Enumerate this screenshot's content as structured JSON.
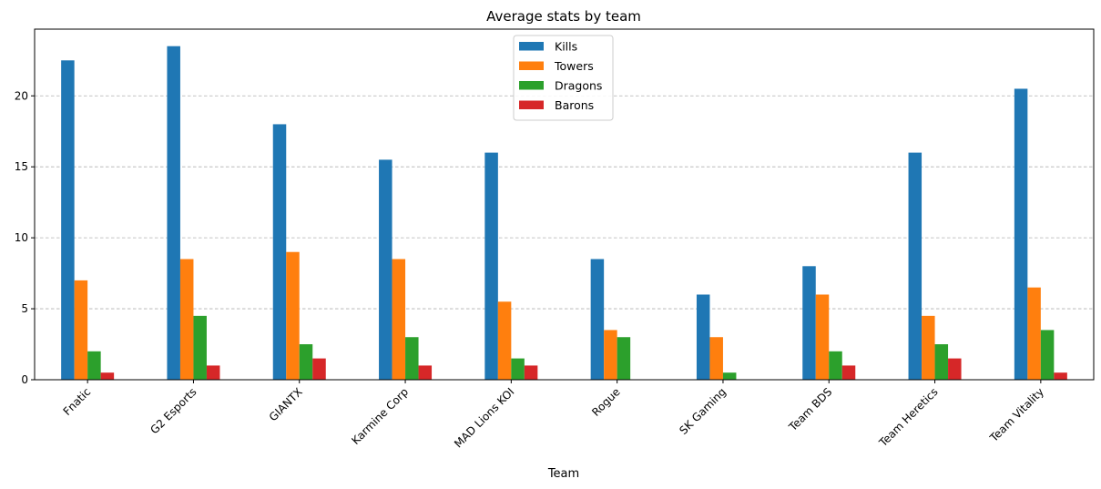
{
  "chart_data": {
    "type": "bar",
    "title": "Average stats by team",
    "xlabel": "Team",
    "ylabel": "",
    "ylim": [
      0,
      24.7
    ],
    "yticks": [
      0,
      5,
      10,
      15,
      20
    ],
    "grid": "y-dashed",
    "legend_position": "top-center",
    "categories": [
      "Fnatic",
      "G2 Esports",
      "GIANTX",
      "Karmine Corp",
      "MAD Lions KOI",
      "Rogue",
      "SK Gaming",
      "Team BDS",
      "Team Heretics",
      "Team Vitality"
    ],
    "series": [
      {
        "name": "Kills",
        "color": "#1f77b4",
        "values": [
          22.5,
          23.5,
          18.0,
          15.5,
          16.0,
          8.5,
          6.0,
          8.0,
          16.0,
          20.5
        ]
      },
      {
        "name": "Towers",
        "color": "#ff7f0e",
        "values": [
          7.0,
          8.5,
          9.0,
          8.5,
          5.5,
          3.5,
          3.0,
          6.0,
          4.5,
          6.5
        ]
      },
      {
        "name": "Dragons",
        "color": "#2ca02c",
        "values": [
          2.0,
          4.5,
          2.5,
          3.0,
          1.5,
          3.0,
          0.5,
          2.0,
          2.5,
          3.5
        ]
      },
      {
        "name": "Barons",
        "color": "#d62728",
        "values": [
          0.5,
          1.0,
          1.5,
          1.0,
          1.0,
          0.0,
          0.0,
          1.0,
          1.5,
          0.5
        ]
      }
    ]
  }
}
